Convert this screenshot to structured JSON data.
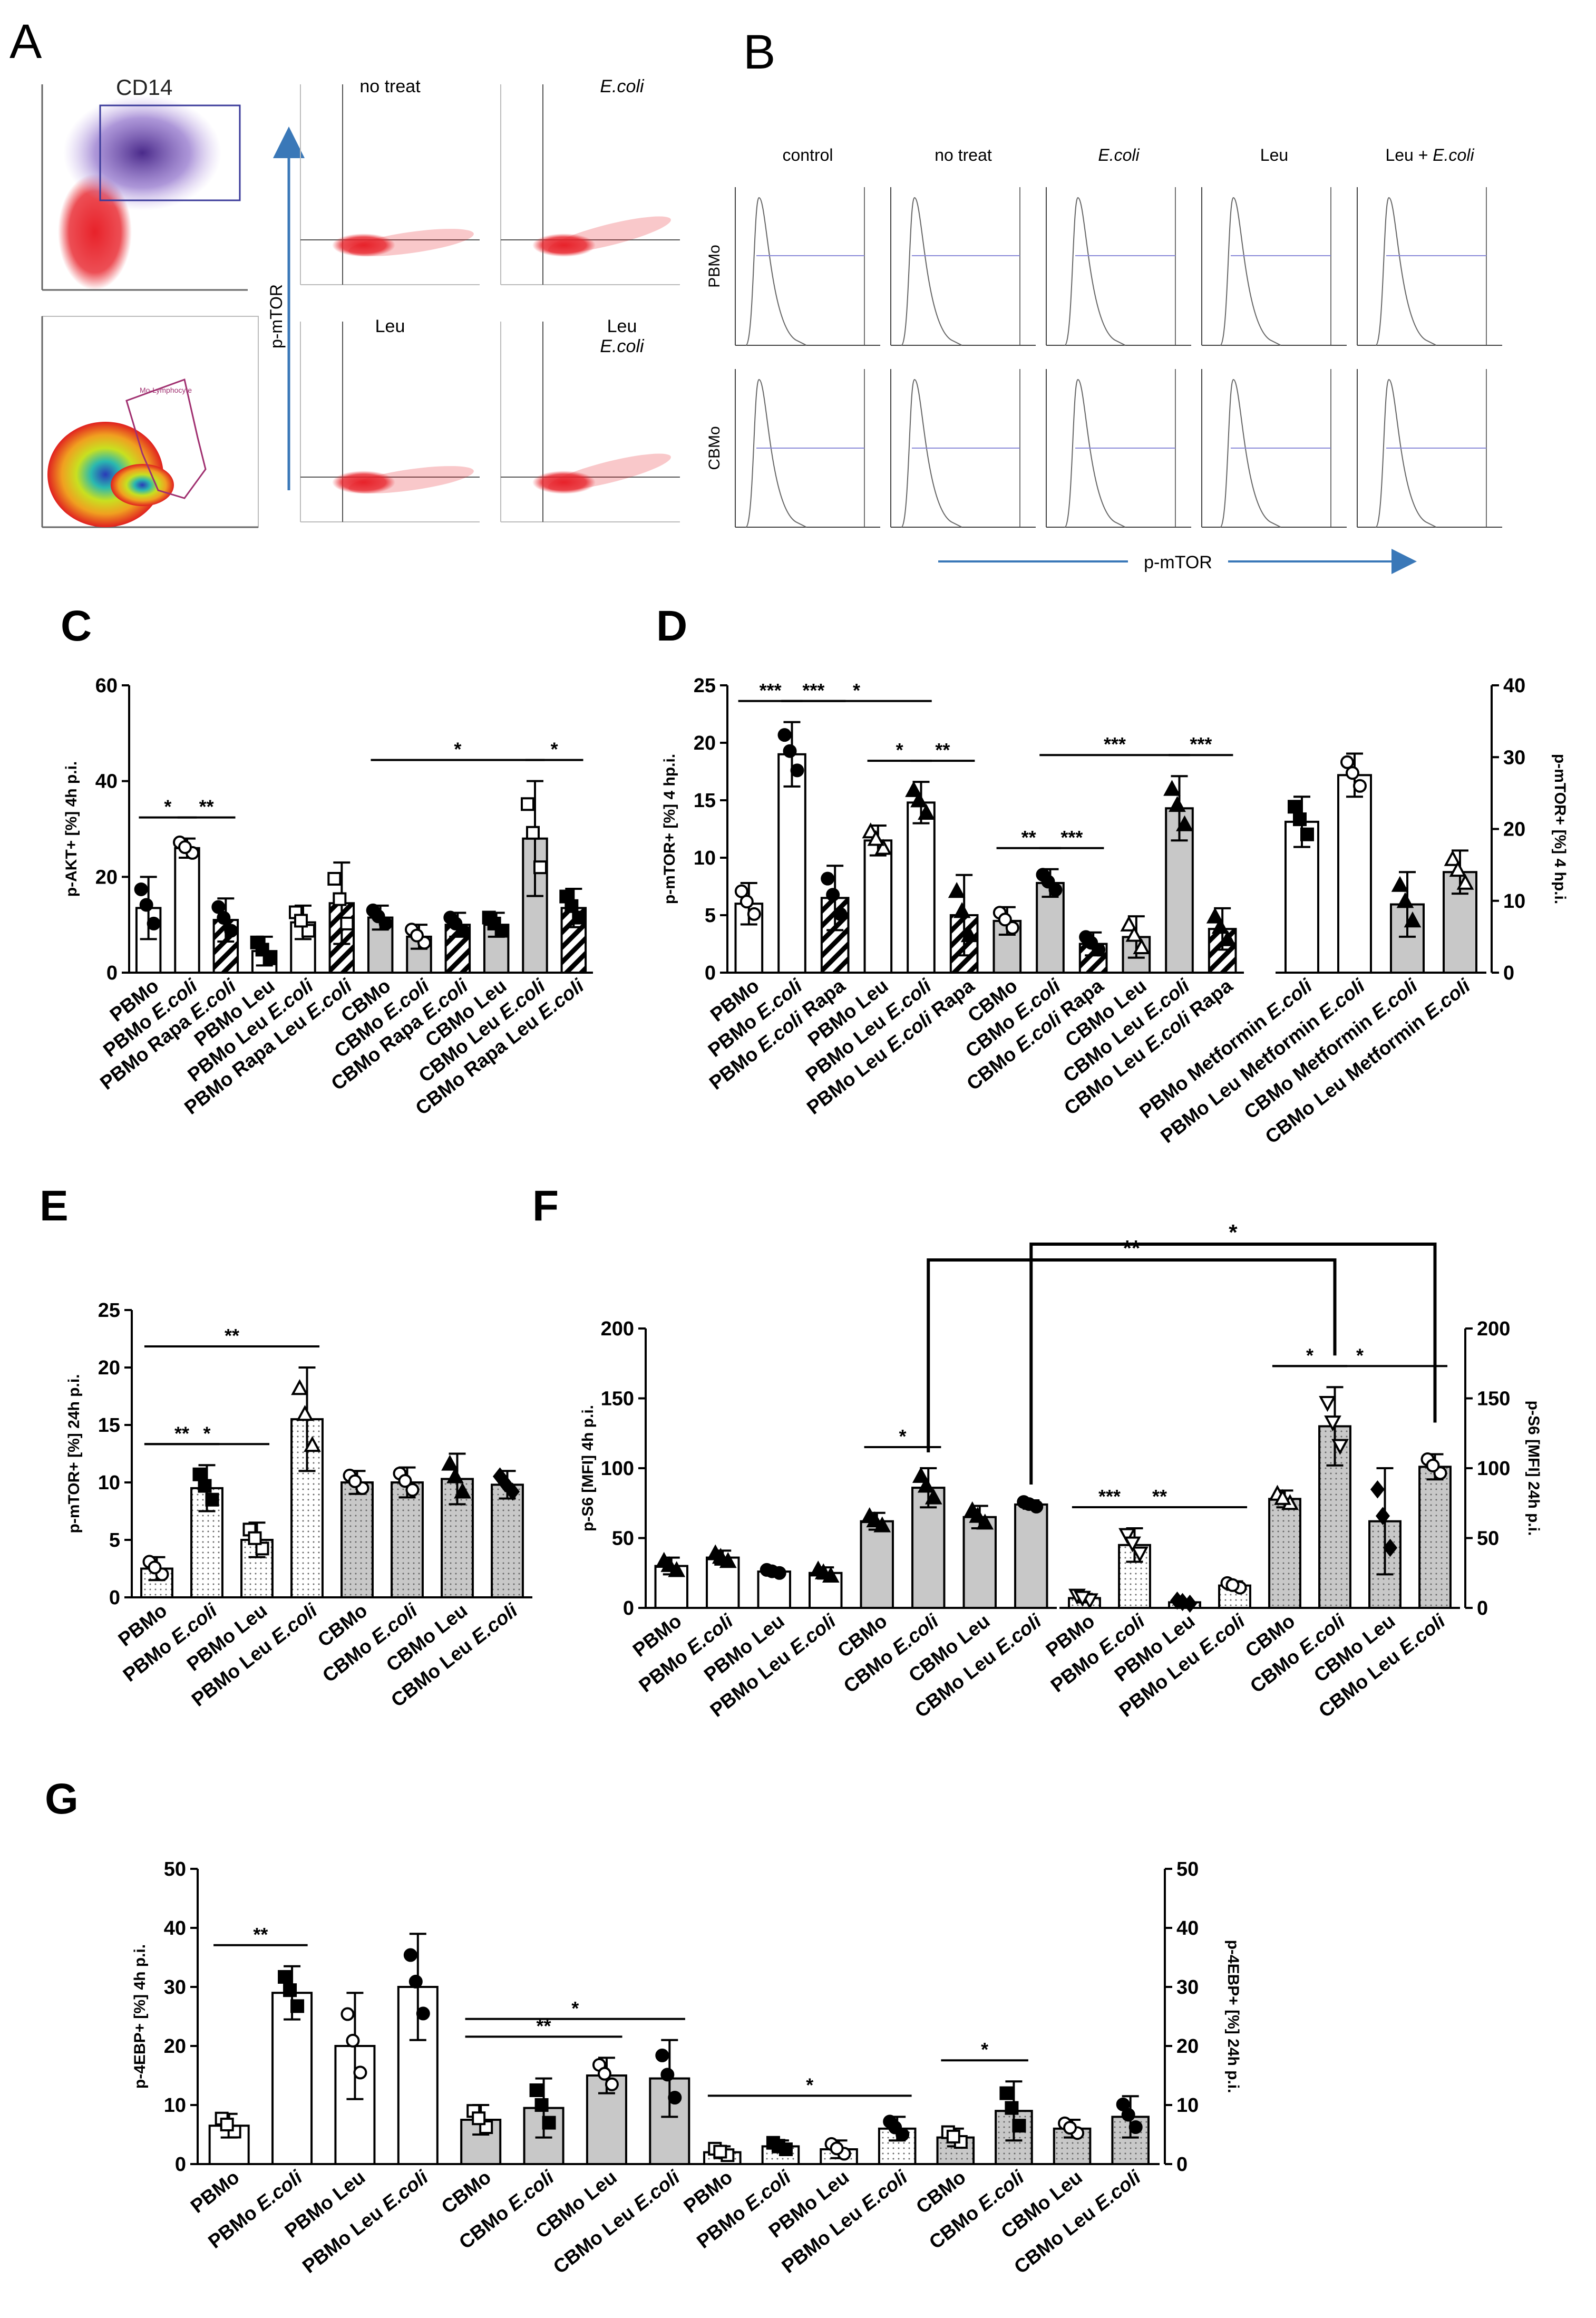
{
  "figure": {
    "panel_labels": [
      "A",
      "B",
      "C",
      "D",
      "E",
      "F",
      "G"
    ],
    "flow": {
      "gate_label": "CD14",
      "gate_small": "Mo-Lymphocyte",
      "scatter_titles": [
        "no treat",
        "E.coli",
        "Leu",
        "Leu E.coli"
      ],
      "scatter_yaxis": "p-mTOR",
      "hist_cols": [
        "control",
        "no treat",
        "E.coli",
        "Leu",
        "Leu + E.coli"
      ],
      "hist_rows": [
        "PBMo",
        "CBMo"
      ],
      "hist_xaxis": "p-mTOR"
    },
    "colors": {
      "white": "#ffffff",
      "grey": "#c8c8c8",
      "black": "#000000",
      "flowRed": "#e8222a",
      "flowPurple": "#6a4aa8",
      "gateBlue": "#3a3a9a",
      "axisArrow": "#3a78b8"
    }
  },
  "chart_data": [
    {
      "id": "C",
      "type": "bar",
      "ylabel": "p-AKT+ [%] 4h p.i.",
      "ylim": [
        0,
        60
      ],
      "yticks": [
        0,
        20,
        40,
        60
      ],
      "categories": [
        "PBMo",
        "PBMo E.coli",
        "PBMo Rapa E.coli",
        "PBMo Leu",
        "PBMo Leu E.coli",
        "PBMo Rapa Leu E.coli",
        "CBMo",
        "CBMo E.coli",
        "CBMo Rapa E.coli",
        "CBMo Leu",
        "CBMo Leu E.coli",
        "CBMo Rapa Leu E.coli"
      ],
      "values": [
        13.5,
        26,
        11,
        4.5,
        10.5,
        14.5,
        11.5,
        7.5,
        10,
        10,
        28,
        13.5
      ],
      "errors": [
        6.5,
        2,
        4.5,
        3,
        3.5,
        8.5,
        2.5,
        2.5,
        2.5,
        2.5,
        12,
        4
      ],
      "fills": [
        "white",
        "white",
        "hatch",
        "white",
        "white",
        "hatch",
        "grey",
        "grey",
        "hatch",
        "grey",
        "grey",
        "hatch"
      ],
      "markers": [
        "circle",
        "circle",
        "circle",
        "square",
        "square",
        "square",
        "circle",
        "circle",
        "circle",
        "square",
        "square",
        "square"
      ],
      "marker_fill": [
        "black",
        "white",
        "black",
        "black",
        "white",
        "white",
        "black",
        "white",
        "black",
        "black",
        "white",
        "black"
      ],
      "sig": [
        {
          "a": 0,
          "b": 1,
          "label": "*"
        },
        {
          "a": 1,
          "b": 2,
          "label": "**"
        },
        {
          "a": 6,
          "b": 10,
          "label": "*"
        },
        {
          "a": 10,
          "b": 11,
          "label": "*"
        }
      ]
    },
    {
      "id": "D",
      "type": "bar",
      "ylabel": "p-mTOR+ [%] 4 hp.i.",
      "ylim": [
        0,
        25
      ],
      "yticks": [
        0,
        5,
        10,
        15,
        20,
        25
      ],
      "categories": [
        "PBMo",
        "PBMo E.coli",
        "PBMo E.coli Rapa",
        "PBMo Leu",
        "PBMo Leu E.coli",
        "PBMo Leu E.coli Rapa",
        "CBMo",
        "CBMo E.coli",
        "CBMo E.coli Rapa",
        "CBMo Leu",
        "CBMo Leu E.coli",
        "CBMo Leu E.coli Rapa"
      ],
      "values": [
        6,
        19,
        6.5,
        11.5,
        14.8,
        5,
        4.5,
        7.8,
        2.5,
        3.1,
        14.3,
        3.8
      ],
      "errors": [
        1.8,
        2.8,
        2.8,
        1.3,
        1.8,
        3.5,
        1.2,
        1.2,
        1,
        1.8,
        2.8,
        1.8
      ],
      "fills": [
        "white",
        "white",
        "hatch",
        "white",
        "white",
        "hatch",
        "grey",
        "grey",
        "hatch",
        "grey",
        "grey",
        "hatch"
      ],
      "markers": [
        "circle",
        "circle",
        "circle",
        "triangle",
        "triangle",
        "triangle",
        "circle",
        "circle",
        "circle",
        "triangle",
        "triangle",
        "triangle"
      ],
      "marker_fill": [
        "white",
        "black",
        "black",
        "white",
        "black",
        "black",
        "white",
        "black",
        "black",
        "white",
        "black",
        "black"
      ],
      "sig": [
        {
          "a": 0,
          "b": 1,
          "label": "***"
        },
        {
          "a": 1,
          "b": 2,
          "label": "***"
        },
        {
          "a": 1,
          "b": 4,
          "label": "*"
        },
        {
          "a": 3,
          "b": 4,
          "label": "*"
        },
        {
          "a": 4,
          "b": 5,
          "label": "**"
        },
        {
          "a": 6,
          "b": 7,
          "label": "**"
        },
        {
          "a": 7,
          "b": 8,
          "label": "***"
        },
        {
          "a": 7,
          "b": 10,
          "label": "***"
        },
        {
          "a": 10,
          "b": 11,
          "label": "***"
        }
      ]
    },
    {
      "id": "D2",
      "type": "bar",
      "ylabel": "p-mTOR+ [%] 4 hp.i.",
      "ylim": [
        0,
        40
      ],
      "yticks": [
        0,
        10,
        20,
        30,
        40
      ],
      "categories": [
        "PBMo Metformin E.coli",
        "PBMo Leu Metformin E.coli",
        "CBMo Metformin E.coli",
        "CBMo Leu Metformin E.coli"
      ],
      "values": [
        21,
        27.5,
        9.5,
        14
      ],
      "errors": [
        3.5,
        3,
        4.5,
        3
      ],
      "fills": [
        "white",
        "white",
        "grey",
        "grey"
      ],
      "markers": [
        "square",
        "circle",
        "triangle",
        "triangle"
      ],
      "marker_fill": [
        "black",
        "white",
        "black",
        "white"
      ],
      "sig": []
    },
    {
      "id": "E",
      "type": "bar",
      "ylabel": "p-mTOR+ [%] 24h p.i.",
      "ylim": [
        0,
        25
      ],
      "yticks": [
        0,
        5,
        10,
        15,
        20,
        25
      ],
      "categories": [
        "PBMo",
        "PBMo E.coli",
        "PBMo Leu",
        "PBMo Leu E.coli",
        "CBMo",
        "CBMo E.coli",
        "CBMo Leu",
        "CBMo Leu E.coli"
      ],
      "values": [
        2.5,
        9.5,
        5,
        15.5,
        10,
        10,
        10.3,
        9.8
      ],
      "errors": [
        1,
        2,
        1.5,
        4.5,
        1,
        1.3,
        2.2,
        1.2
      ],
      "fills": [
        "dots",
        "dots",
        "dots",
        "dots",
        "greydots",
        "greydots",
        "greydots",
        "greydots"
      ],
      "markers": [
        "circle",
        "square",
        "square",
        "triangle",
        "circle",
        "circle",
        "triangle",
        "diamond"
      ],
      "marker_fill": [
        "white",
        "black",
        "white",
        "white",
        "white",
        "white",
        "black",
        "black"
      ],
      "sig": [
        {
          "a": 0,
          "b": 3,
          "label": "**"
        },
        {
          "a": 0,
          "b": 2,
          "label": "*"
        },
        {
          "a": 0,
          "b": 1,
          "label": "**"
        }
      ]
    },
    {
      "id": "F4",
      "type": "bar",
      "ylabel": "p-S6 [MFI] 4h p.i.",
      "ylim": [
        0,
        200
      ],
      "yticks": [
        0,
        50,
        100,
        150,
        200
      ],
      "categories": [
        "PBMo",
        "PBMo E.coli",
        "PBMo Leu",
        "PBMo Leu E.coli",
        "CBMo",
        "CBMo E.coli",
        "CBMo Leu",
        "CBMo Leu E.coli"
      ],
      "values": [
        30,
        36,
        26,
        25,
        62,
        86,
        65,
        74
      ],
      "errors": [
        6,
        5,
        2,
        4,
        6,
        14,
        8,
        3
      ],
      "fills": [
        "white",
        "white",
        "white",
        "white",
        "grey",
        "grey",
        "grey",
        "grey"
      ],
      "markers": [
        "triangle",
        "triangle",
        "circle",
        "triangle",
        "triangle",
        "triangle",
        "triangle",
        "circle"
      ],
      "marker_fill": [
        "black",
        "black",
        "black",
        "black",
        "black",
        "black",
        "black",
        "black"
      ],
      "sig": [
        {
          "a": 4,
          "b": 5,
          "label": "*"
        }
      ]
    },
    {
      "id": "F24",
      "type": "bar",
      "ylabel": "p-S6 [MFI] 24h p.i.",
      "ylim": [
        0,
        200
      ],
      "yticks": [
        0,
        50,
        100,
        150,
        200
      ],
      "categories": [
        "PBMo",
        "PBMo E.coli",
        "PBMo Leu",
        "PBMo Leu E.coli",
        "CBMo",
        "CBMo E.coli",
        "CBMo Leu",
        "CBMo Leu E.coli"
      ],
      "values": [
        7,
        45,
        4,
        16,
        78,
        130,
        62,
        101
      ],
      "errors": [
        3,
        12,
        2,
        3,
        6,
        28,
        38,
        9
      ],
      "fills": [
        "dots",
        "dots",
        "dots",
        "dots",
        "greydots",
        "greydots",
        "greydots",
        "greydots"
      ],
      "markers": [
        "triangle-down",
        "triangle-down",
        "diamond",
        "circle",
        "triangle",
        "triangle-down",
        "diamond",
        "circle"
      ],
      "marker_fill": [
        "white",
        "white",
        "black",
        "white",
        "white",
        "white",
        "black",
        "white"
      ],
      "sig": [
        {
          "a": 0,
          "b": 1,
          "label": "***"
        },
        {
          "a": 0,
          "b": 3,
          "label": "**"
        },
        {
          "a": 4,
          "b": 5,
          "label": "*"
        },
        {
          "a": 4,
          "b": 7,
          "label": "*"
        }
      ],
      "cross_sig": [
        {
          "from": "F4-5",
          "to": "F24-5",
          "label": "**"
        },
        {
          "from": "F4-7",
          "to": "F24-7",
          "label": "*"
        }
      ]
    },
    {
      "id": "G4",
      "type": "bar",
      "ylabel": "p-4EBP+ [%] 4h p.i.",
      "ylim": [
        0,
        50
      ],
      "yticks": [
        0,
        10,
        20,
        30,
        40,
        50
      ],
      "categories": [
        "PBMo",
        "PBMo E.coli",
        "PBMo Leu",
        "PBMo Leu E.coli",
        "CBMo",
        "CBMo E.coli",
        "CBMo Leu",
        "CBMo Leu E.coli"
      ],
      "values": [
        6.5,
        29,
        20,
        30,
        7.5,
        9.5,
        15,
        14.5
      ],
      "errors": [
        2,
        4.5,
        9,
        9,
        2.5,
        5,
        3,
        6.5
      ],
      "fills": [
        "white",
        "white",
        "white",
        "white",
        "grey",
        "grey",
        "grey",
        "grey"
      ],
      "markers": [
        "square",
        "square",
        "circle",
        "circle",
        "square",
        "square",
        "circle",
        "circle"
      ],
      "marker_fill": [
        "white",
        "black",
        "white",
        "black",
        "white",
        "black",
        "white",
        "black"
      ],
      "sig": [
        {
          "a": 0,
          "b": 1,
          "label": "**"
        },
        {
          "a": 4,
          "b": 6,
          "label": "**"
        },
        {
          "a": 4,
          "b": 7,
          "label": "*"
        }
      ]
    },
    {
      "id": "G24",
      "type": "bar",
      "ylabel": "p-4EBP+ [%] 24h p.i.",
      "ylim": [
        0,
        50
      ],
      "yticks": [
        0,
        10,
        20,
        30,
        40,
        50
      ],
      "categories": [
        "PBMo",
        "PBMo E.coli",
        "PBMo Leu",
        "PBMo Leu E.coli",
        "CBMo",
        "CBMo E.coli",
        "CBMo Leu",
        "CBMo Leu E.coli"
      ],
      "values": [
        2,
        3,
        2.5,
        6,
        4.5,
        9,
        6,
        8
      ],
      "errors": [
        1,
        1,
        1.5,
        2,
        1.5,
        5,
        1.5,
        3.5
      ],
      "fills": [
        "dots",
        "dots",
        "dots",
        "dots",
        "greydots",
        "greydots",
        "greydots",
        "greydots"
      ],
      "markers": [
        "square",
        "square",
        "circle",
        "circle",
        "square",
        "square",
        "circle",
        "circle"
      ],
      "marker_fill": [
        "white",
        "black",
        "white",
        "black",
        "white",
        "black",
        "white",
        "black"
      ],
      "sig": [
        {
          "a": 0,
          "b": 3,
          "label": "*"
        },
        {
          "a": 4,
          "b": 5,
          "label": "*"
        }
      ]
    }
  ]
}
